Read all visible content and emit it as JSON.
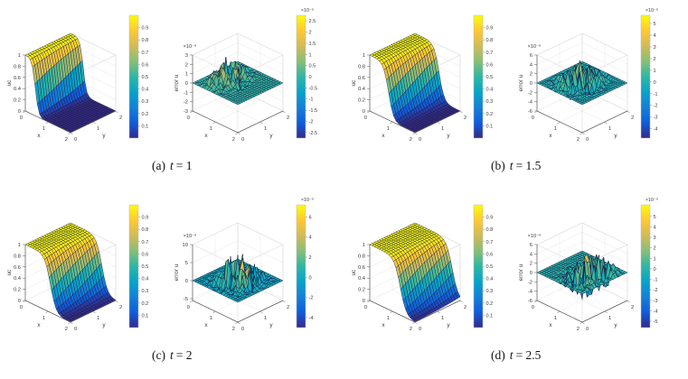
{
  "figure": {
    "background": "#ffffff",
    "colormap": "parula",
    "mesh_edge_color": "#17173a",
    "axis_color": "#5a5a5a",
    "grid_color": "#e8e8e8",
    "box_color": "#d9d9d9",
    "tick_text_color": "#3c3c3c"
  },
  "chart_data": [
    {
      "caption": {
        "label": "(a)",
        "var": "t",
        "rest": "= 1"
      },
      "plots": [
        {
          "type": "surface3d",
          "role": "solution",
          "xlabel": "x",
          "ylabel": "y",
          "zlabel": "uc",
          "xlim": [
            0,
            2
          ],
          "ylim": [
            0,
            2
          ],
          "zlim": [
            0,
            1
          ],
          "xticks": [
            "0",
            "1",
            "2"
          ],
          "yticks": [
            "0",
            "1",
            "2"
          ],
          "zticks": [
            "0",
            "0.2",
            "0.4",
            "0.6",
            "0.8",
            "1"
          ],
          "zscale_label": "",
          "colorbar": {
            "ticks": [
              "0.1",
              "0.2",
              "0.3",
              "0.4",
              "0.5",
              "0.6",
              "0.7",
              "0.8",
              "0.9"
            ],
            "range": [
              0,
              1
            ],
            "scale_label": ""
          },
          "model": {
            "kind": "front",
            "front": 0.5,
            "steep": 14,
            "skew": 0.06
          }
        },
        {
          "type": "surface3d",
          "role": "error",
          "xlabel": "x",
          "ylabel": "y",
          "zlabel": "error u",
          "xlim": [
            0,
            2
          ],
          "ylim": [
            0,
            2
          ],
          "zlim": [
            -3,
            3
          ],
          "xticks": [
            "0",
            "1",
            "2"
          ],
          "yticks": [
            "0",
            "1",
            "2"
          ],
          "zticks": [
            "-3",
            "-2",
            "-1",
            "0",
            "1",
            "2",
            "3"
          ],
          "zscale_label": "×10⁻⁶",
          "colorbar": {
            "ticks": [
              "-2.5",
              "-2",
              "-1.5",
              "-1",
              "-0.5",
              "0",
              "0.5",
              "1",
              "1.5",
              "2",
              "2.5"
            ],
            "range": [
              -2.75,
              2.75
            ],
            "scale_label": "×10⁻⁶"
          },
          "model": {
            "kind": "spikes",
            "amp": 2.75,
            "center_x": 0.55,
            "sx": 0.33,
            "sy": 0.6,
            "pos_bias": 1,
            "seed": 7
          }
        }
      ]
    },
    {
      "caption": {
        "label": "(b)",
        "var": "t",
        "rest": "= 1.5"
      },
      "plots": [
        {
          "type": "surface3d",
          "role": "solution",
          "xlabel": "x",
          "ylabel": "y",
          "zlabel": "uc",
          "xlim": [
            0,
            2
          ],
          "ylim": [
            0,
            2
          ],
          "zlim": [
            0,
            1
          ],
          "xticks": [
            "0",
            "1",
            "2"
          ],
          "yticks": [
            "0",
            "1",
            "2"
          ],
          "zticks": [
            "0",
            "0.2",
            "0.4",
            "0.6",
            "0.8",
            "1"
          ],
          "zscale_label": "",
          "colorbar": {
            "ticks": [
              "0.1",
              "0.2",
              "0.3",
              "0.4",
              "0.5",
              "0.6",
              "0.7",
              "0.8",
              "0.9"
            ],
            "range": [
              0,
              1
            ],
            "scale_label": ""
          },
          "model": {
            "kind": "front",
            "front": 0.95,
            "steep": 9,
            "skew": 0.12
          }
        },
        {
          "type": "surface3d",
          "role": "error",
          "xlabel": "x",
          "ylabel": "y",
          "zlabel": "error u",
          "xlim": [
            0,
            2
          ],
          "ylim": [
            0,
            2
          ],
          "zlim": [
            -6,
            6
          ],
          "xticks": [
            "0",
            "1",
            "2"
          ],
          "yticks": [
            "0",
            "1",
            "2"
          ],
          "zticks": [
            "-6",
            "-4",
            "-2",
            "0",
            "2",
            "4",
            "6"
          ],
          "zscale_label": "×10⁻⁶",
          "colorbar": {
            "ticks": [
              "-4",
              "-3",
              "-2",
              "-1",
              "0",
              "1",
              "2",
              "3",
              "4",
              "5"
            ],
            "range": [
              -4.8,
              5.7
            ],
            "scale_label": "×10⁻⁶"
          },
          "model": {
            "kind": "spikes",
            "amp": 5.5,
            "center_x": 0.9,
            "sx": 0.38,
            "sy": 0.6,
            "pos_bias": 1,
            "seed": 21
          }
        }
      ]
    },
    {
      "caption": {
        "label": "(c)",
        "var": "t",
        "rest": "= 2"
      },
      "plots": [
        {
          "type": "surface3d",
          "role": "solution",
          "xlabel": "x",
          "ylabel": "y",
          "zlabel": "uc",
          "xlim": [
            0,
            2
          ],
          "ylim": [
            0,
            2
          ],
          "zlim": [
            0,
            1
          ],
          "xticks": [
            "0",
            "1",
            "2"
          ],
          "yticks": [
            "0",
            "1",
            "2"
          ],
          "zticks": [
            "0",
            "0.2",
            "0.4",
            "0.6",
            "0.8",
            "1"
          ],
          "zscale_label": "",
          "colorbar": {
            "ticks": [
              "0.1",
              "0.2",
              "0.3",
              "0.4",
              "0.5",
              "0.6",
              "0.7",
              "0.8",
              "0.9"
            ],
            "range": [
              0,
              1
            ],
            "scale_label": ""
          },
          "model": {
            "kind": "front",
            "front": 1.25,
            "steep": 8,
            "skew": 0.14
          }
        },
        {
          "type": "surface3d",
          "role": "error",
          "xlabel": "x",
          "ylabel": "y",
          "zlabel": "error u",
          "xlim": [
            0,
            2
          ],
          "ylim": [
            0,
            2
          ],
          "zlim": [
            -5.5,
            10
          ],
          "xticks": [
            "0",
            "1",
            "2"
          ],
          "yticks": [
            "0",
            "1",
            "2"
          ],
          "zticks": [
            "-5",
            "0",
            "5",
            "10"
          ],
          "zscale_label": "×10⁻⁶",
          "colorbar": {
            "ticks": [
              "-4",
              "-2",
              "0",
              "2",
              "4",
              "6"
            ],
            "range": [
              -5,
              7.2
            ],
            "scale_label": "×10⁻⁶"
          },
          "model": {
            "kind": "spikes",
            "amp": 6.8,
            "center_x": 1.05,
            "sx": 0.4,
            "sy": 0.55,
            "pos_bias": 1.35,
            "seed": 33
          }
        }
      ]
    },
    {
      "caption": {
        "label": "(d)",
        "var": "t",
        "rest": "= 2.5"
      },
      "plots": [
        {
          "type": "surface3d",
          "role": "solution",
          "xlabel": "x",
          "ylabel": "y",
          "zlabel": "uc",
          "xlim": [
            0,
            2
          ],
          "ylim": [
            0,
            2
          ],
          "zlim": [
            0,
            1
          ],
          "xticks": [
            "0",
            "1",
            "2"
          ],
          "yticks": [
            "0",
            "1",
            "2"
          ],
          "zticks": [
            "0",
            "0.2",
            "0.4",
            "0.6",
            "0.8",
            "1"
          ],
          "zscale_label": "",
          "colorbar": {
            "ticks": [
              "0.1",
              "0.2",
              "0.3",
              "0.4",
              "0.5",
              "0.6",
              "0.7",
              "0.8",
              "0.9"
            ],
            "range": [
              0,
              1
            ],
            "scale_label": ""
          },
          "model": {
            "kind": "front",
            "front": 1.5,
            "steep": 7.5,
            "skew": 0.15
          }
        },
        {
          "type": "surface3d",
          "role": "error",
          "xlabel": "x",
          "ylabel": "y",
          "zlabel": "error u",
          "xlim": [
            0,
            2
          ],
          "ylim": [
            0,
            2
          ],
          "zlim": [
            -6,
            6
          ],
          "xticks": [
            "0",
            "1",
            "2"
          ],
          "yticks": [
            "0",
            "1",
            "2"
          ],
          "zticks": [
            "-6",
            "-4",
            "-2",
            "0",
            "2",
            "4",
            "6"
          ],
          "zscale_label": "×10⁻⁶",
          "colorbar": {
            "ticks": [
              "-5",
              "-4",
              "-3",
              "-2",
              "-1",
              "0",
              "1",
              "2",
              "3",
              "4",
              "5"
            ],
            "range": [
              -5.6,
              6.1
            ],
            "scale_label": "×10⁻⁶"
          },
          "model": {
            "kind": "spikes",
            "amp": 5.6,
            "center_x": 1.45,
            "sx": 0.42,
            "sy": 0.8,
            "pos_bias": 1,
            "seed": 45
          }
        }
      ]
    }
  ]
}
